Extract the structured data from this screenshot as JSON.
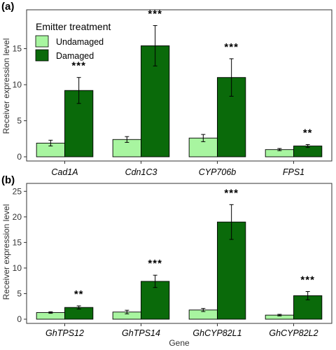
{
  "colors": {
    "undamaged": "#a8f5a0",
    "damaged": "#0a6a0a",
    "axis": "#333333",
    "bar_edge": "#000000"
  },
  "legend": {
    "title": "Emitter treatment",
    "placement": "top-left",
    "entries": [
      "Undamaged",
      "Damaged"
    ]
  },
  "chart_data": [
    {
      "type": "bar",
      "panel_label": "(a)",
      "ylabel": "Receiver expression level",
      "xlabel": "",
      "ylim": [
        0,
        20
      ],
      "yticks": [
        0,
        5,
        10,
        15
      ],
      "categories": [
        "Cad1A",
        "Cdn1C3",
        "CYP706b",
        "FPS1"
      ],
      "series": [
        {
          "name": "Undamaged",
          "values": [
            1.9,
            2.4,
            2.6,
            1.0
          ],
          "errors": [
            0.4,
            0.4,
            0.5,
            0.15
          ]
        },
        {
          "name": "Damaged",
          "values": [
            9.2,
            15.4,
            11.0,
            1.5
          ],
          "errors": [
            1.8,
            2.8,
            2.6,
            0.2
          ]
        }
      ],
      "significance": [
        "***",
        "***",
        "***",
        "**"
      ],
      "grid": false
    },
    {
      "type": "bar",
      "panel_label": "(b)",
      "ylabel": "Receiver expression level",
      "xlabel": "Gene",
      "ylim": [
        0,
        26
      ],
      "yticks": [
        0,
        5,
        10,
        15,
        20,
        25
      ],
      "categories": [
        "GhTPS12",
        "GhTPS14",
        "GhCYP82L1",
        "GhCYP82L2"
      ],
      "series": [
        {
          "name": "Undamaged",
          "values": [
            1.3,
            1.4,
            1.8,
            0.8
          ],
          "errors": [
            0.15,
            0.35,
            0.3,
            0.15
          ]
        },
        {
          "name": "Damaged",
          "values": [
            2.3,
            7.4,
            19.0,
            4.6
          ],
          "errors": [
            0.3,
            1.2,
            3.4,
            0.8
          ]
        }
      ],
      "significance": [
        "**",
        "***",
        "***",
        "***"
      ],
      "grid": false
    }
  ]
}
